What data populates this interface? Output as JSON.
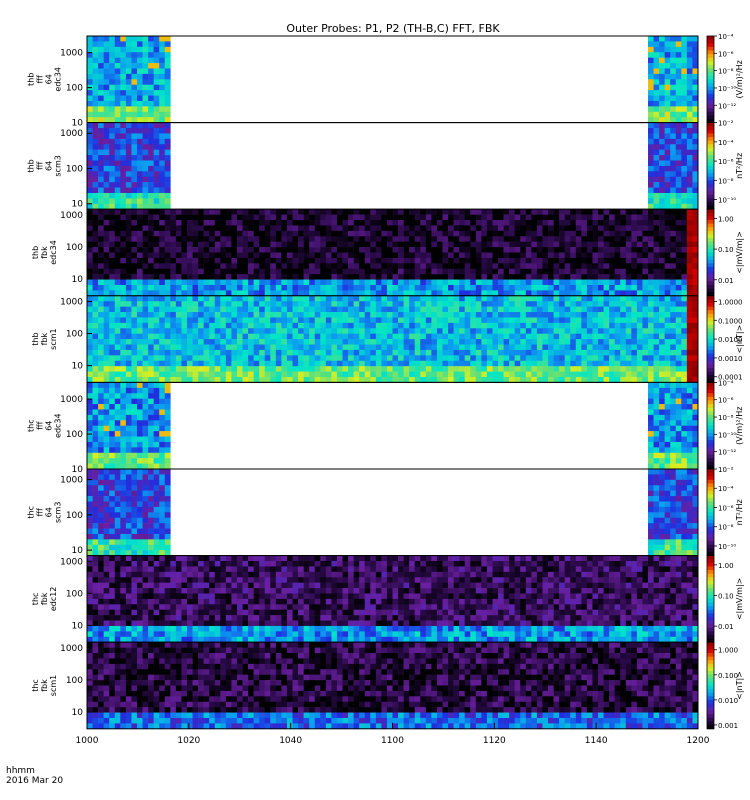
{
  "title": "Outer Probes: P1, P2 (TH-B,C) FFT, FBK",
  "footer": {
    "unit_label": "hhmm",
    "date_label": "2016 Mar 20"
  },
  "time_axis": {
    "range": [
      0,
      120
    ],
    "ticks": [
      {
        "t": 0,
        "label": "1000"
      },
      {
        "t": 20,
        "label": "1020"
      },
      {
        "t": 40,
        "label": "1040"
      },
      {
        "t": 60,
        "label": "1100"
      },
      {
        "t": 80,
        "label": "1120"
      },
      {
        "t": 100,
        "label": "1140"
      },
      {
        "t": 120,
        "label": "1200"
      }
    ]
  },
  "colors": {
    "frame": "#000000",
    "colormap": [
      "#000000",
      "#2a0a4a",
      "#6a1fa0",
      "#1f2fe0",
      "#0a9ef0",
      "#00e5c8",
      "#5ee07a",
      "#d8f020",
      "#ff8a00",
      "#d40000",
      "#8b0000"
    ]
  },
  "chart_data": [
    {
      "type": "heatmap",
      "panel_label": [
        "thb",
        "fff",
        "64",
        "edc34"
      ],
      "y_scale": "log",
      "y_range": [
        10,
        3000
      ],
      "y_ticks": [
        {
          "v": 10,
          "label": "10"
        },
        {
          "v": 100,
          "label": "100"
        },
        {
          "v": 1000,
          "label": "1000"
        }
      ],
      "colorbar_label": "(V/m)²/Hz",
      "colorbar_range": [
        1e-14,
        0.0001
      ],
      "colorbar_ticks": [
        {
          "v": 0.0001,
          "label": "10⁻⁴"
        },
        {
          "v": 1e-06,
          "label": "10⁻⁶"
        },
        {
          "v": 1e-08,
          "label": "10⁻⁸"
        },
        {
          "v": 1e-10,
          "label": "10⁻¹⁰"
        },
        {
          "v": 1e-12,
          "label": "10⁻¹²"
        }
      ],
      "data_gaps": [
        [
          16,
          110
        ]
      ],
      "base_level": 0.42,
      "band_level": 0.62,
      "spikes": true,
      "burst": false
    },
    {
      "type": "heatmap",
      "panel_label": [
        "thb",
        "fff",
        "64",
        "scm3"
      ],
      "y_scale": "log",
      "y_range": [
        7,
        2000
      ],
      "y_ticks": [
        {
          "v": 10,
          "label": "10"
        },
        {
          "v": 100,
          "label": "100"
        },
        {
          "v": 1000,
          "label": "1000"
        }
      ],
      "colorbar_label": "nT²/Hz",
      "colorbar_range": [
        1e-11,
        0.01
      ],
      "colorbar_ticks": [
        {
          "v": 0.01,
          "label": "10⁻²"
        },
        {
          "v": 0.0001,
          "label": "10⁻⁴"
        },
        {
          "v": 1e-06,
          "label": "10⁻⁶"
        },
        {
          "v": 1e-08,
          "label": "10⁻⁸"
        },
        {
          "v": 1e-10,
          "label": "10⁻¹⁰"
        }
      ],
      "data_gaps": [
        [
          16,
          110
        ]
      ],
      "base_level": 0.3,
      "band_level": 0.55,
      "spikes": false,
      "burst": false
    },
    {
      "type": "heatmap",
      "panel_label": [
        "thb",
        "fbk",
        "edc34"
      ],
      "y_scale": "log",
      "y_range": [
        3,
        1500
      ],
      "y_ticks": [
        {
          "v": 10,
          "label": "10"
        },
        {
          "v": 100,
          "label": "100"
        },
        {
          "v": 1000,
          "label": "1000"
        }
      ],
      "colorbar_label": "<|mV/m|>",
      "colorbar_range": [
        0.003,
        2
      ],
      "colorbar_ticks": [
        {
          "v": 1,
          "label": "1.00"
        },
        {
          "v": 0.1,
          "label": "0.10"
        },
        {
          "v": 0.01,
          "label": "0.01"
        }
      ],
      "data_gaps": [],
      "base_level": 0.05,
      "band_level": 0.4,
      "spikes": false,
      "burst": true
    },
    {
      "type": "heatmap",
      "panel_label": [
        "thb",
        "fbk",
        "scm1"
      ],
      "y_scale": "log",
      "y_range": [
        3,
        1500
      ],
      "y_ticks": [
        {
          "v": 10,
          "label": "10"
        },
        {
          "v": 100,
          "label": "100"
        },
        {
          "v": 1000,
          "label": "1000"
        }
      ],
      "colorbar_label": "<|nT|>",
      "colorbar_range": [
        5e-05,
        2
      ],
      "colorbar_ticks": [
        {
          "v": 1,
          "label": "1.0000"
        },
        {
          "v": 0.1,
          "label": "0.1000"
        },
        {
          "v": 0.01,
          "label": "0.0100"
        },
        {
          "v": 0.001,
          "label": "0.0010"
        },
        {
          "v": 0.0001,
          "label": "0.0001"
        }
      ],
      "data_gaps": [],
      "base_level": 0.45,
      "band_level": 0.6,
      "spikes": false,
      "burst": true
    },
    {
      "type": "heatmap",
      "panel_label": [
        "thc",
        "fff",
        "64",
        "edc34"
      ],
      "y_scale": "log",
      "y_range": [
        10,
        3000
      ],
      "y_ticks": [
        {
          "v": 10,
          "label": "10"
        },
        {
          "v": 100,
          "label": "100"
        },
        {
          "v": 1000,
          "label": "1000"
        }
      ],
      "colorbar_label": "(V/m)²/Hz",
      "colorbar_range": [
        1e-14,
        0.0001
      ],
      "colorbar_ticks": [
        {
          "v": 0.0001,
          "label": "10⁻⁴"
        },
        {
          "v": 1e-06,
          "label": "10⁻⁶"
        },
        {
          "v": 1e-08,
          "label": "10⁻⁸"
        },
        {
          "v": 1e-10,
          "label": "10⁻¹⁰"
        },
        {
          "v": 1e-12,
          "label": "10⁻¹²"
        }
      ],
      "data_gaps": [
        [
          16,
          110
        ]
      ],
      "base_level": 0.4,
      "band_level": 0.6,
      "spikes": true,
      "burst": false
    },
    {
      "type": "heatmap",
      "panel_label": [
        "thc",
        "fff",
        "64",
        "scm3"
      ],
      "y_scale": "log",
      "y_range": [
        7,
        2000
      ],
      "y_ticks": [
        {
          "v": 10,
          "label": "10"
        },
        {
          "v": 100,
          "label": "100"
        },
        {
          "v": 1000,
          "label": "1000"
        }
      ],
      "colorbar_label": "nT²/Hz",
      "colorbar_range": [
        1e-11,
        0.01
      ],
      "colorbar_ticks": [
        {
          "v": 0.01,
          "label": "10⁻²"
        },
        {
          "v": 0.0001,
          "label": "10⁻⁴"
        },
        {
          "v": 1e-06,
          "label": "10⁻⁶"
        },
        {
          "v": 1e-08,
          "label": "10⁻⁸"
        },
        {
          "v": 1e-10,
          "label": "10⁻¹⁰"
        }
      ],
      "data_gaps": [
        [
          16,
          110
        ]
      ],
      "base_level": 0.3,
      "band_level": 0.55,
      "spikes": false,
      "burst": false
    },
    {
      "type": "heatmap",
      "panel_label": [
        "thc",
        "fbk",
        "edc12"
      ],
      "y_scale": "log",
      "y_range": [
        3,
        1500
      ],
      "y_ticks": [
        {
          "v": 10,
          "label": "10"
        },
        {
          "v": 100,
          "label": "100"
        },
        {
          "v": 1000,
          "label": "1000"
        }
      ],
      "colorbar_label": "<|mV/m|>",
      "colorbar_range": [
        0.003,
        2
      ],
      "colorbar_ticks": [
        {
          "v": 1,
          "label": "1.00"
        },
        {
          "v": 0.1,
          "label": "0.10"
        },
        {
          "v": 0.01,
          "label": "0.01"
        }
      ],
      "data_gaps": [],
      "base_level": 0.12,
      "band_level": 0.4,
      "spikes": false,
      "burst": false
    },
    {
      "type": "heatmap",
      "panel_label": [
        "thc",
        "fbk",
        "scm1"
      ],
      "y_scale": "log",
      "y_range": [
        3,
        1500
      ],
      "y_ticks": [
        {
          "v": 10,
          "label": "10"
        },
        {
          "v": 100,
          "label": "100"
        },
        {
          "v": 1000,
          "label": "1000"
        }
      ],
      "colorbar_label": "<|nT|>",
      "colorbar_range": [
        0.0007,
        2
      ],
      "colorbar_ticks": [
        {
          "v": 1,
          "label": "1.000"
        },
        {
          "v": 0.1,
          "label": "0.100"
        },
        {
          "v": 0.01,
          "label": "0.010"
        },
        {
          "v": 0.001,
          "label": "0.001"
        }
      ],
      "data_gaps": [],
      "base_level": 0.08,
      "band_level": 0.35,
      "spikes": false,
      "burst": false
    }
  ]
}
